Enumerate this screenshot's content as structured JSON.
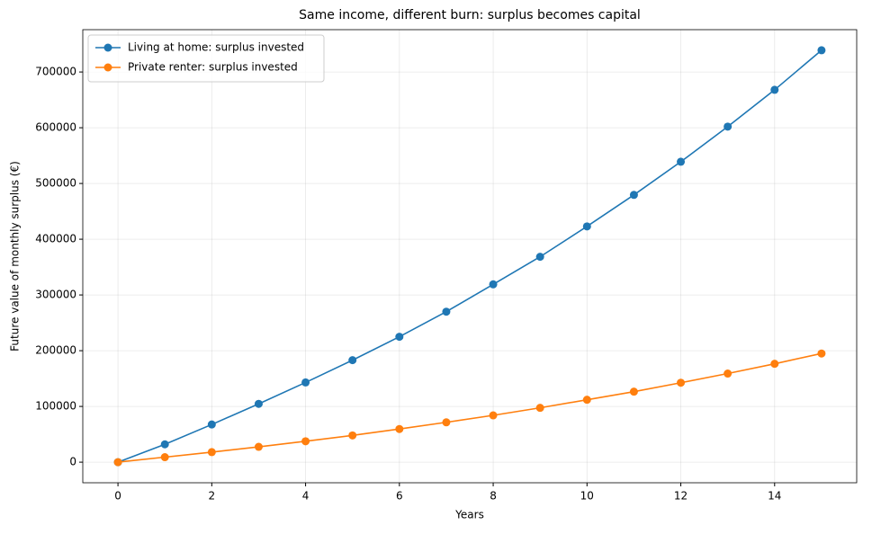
{
  "chart_data": {
    "type": "line",
    "title": "Same income, different burn: surplus becomes capital",
    "xlabel": "Years",
    "ylabel": "Future value of monthly surplus (€)",
    "x": [
      0,
      1,
      2,
      3,
      4,
      5,
      6,
      7,
      8,
      9,
      10,
      11,
      12,
      13,
      14,
      15
    ],
    "series": [
      {
        "name": "Living at home: surplus invested",
        "color": "#1f77b4",
        "values": [
          0,
          32000,
          67600,
          104600,
          143000,
          183000,
          225000,
          270000,
          319000,
          368500,
          423000,
          479500,
          539000,
          602000,
          668000,
          739000
        ]
      },
      {
        "name": "Private renter: surplus invested",
        "color": "#ff7f0e",
        "values": [
          0,
          9000,
          18000,
          27500,
          37500,
          48000,
          59500,
          71500,
          84000,
          97500,
          112000,
          126500,
          142500,
          159000,
          176500,
          195000
        ]
      }
    ],
    "xlim": [
      -0.75,
      15.75
    ],
    "xticks": [
      0,
      2,
      4,
      6,
      8,
      10,
      12,
      14
    ],
    "ylim": [
      -36950,
      775950
    ],
    "yticks": [
      0,
      100000,
      200000,
      300000,
      400000,
      500000,
      600000,
      700000
    ],
    "grid": true,
    "legend": "upper-left"
  }
}
